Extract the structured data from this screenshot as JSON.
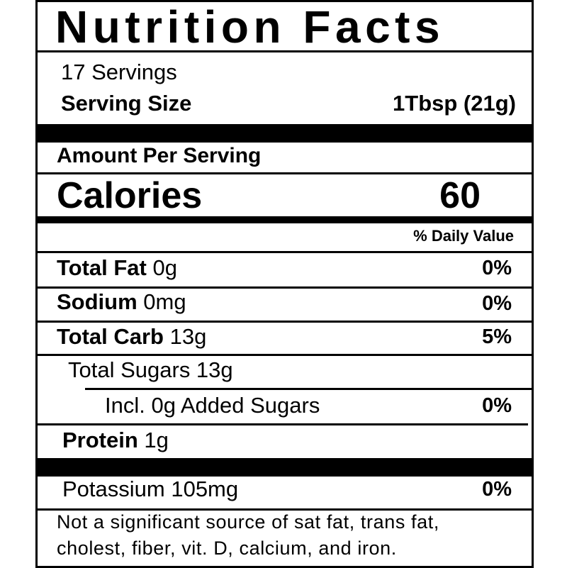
{
  "title": "Nutrition Facts",
  "servings": "17 Servings",
  "serving_size": {
    "label": "Serving Size",
    "value": "1Tbsp (21g)"
  },
  "amount_per_serving": "Amount Per Serving",
  "calories": {
    "label": "Calories",
    "value": "60"
  },
  "daily_value_header": "% Daily Value",
  "nutrients": [
    {
      "name": "Total  Fat",
      "amount": " 0g",
      "dv": "0%"
    },
    {
      "name": "Sodium",
      "amount": " 0mg",
      "dv": "0%"
    },
    {
      "name": "Total Carb",
      "amount": " 13g",
      "dv": "5%"
    },
    {
      "name": "Total Sugars 13g",
      "amount": "",
      "dv": ""
    },
    {
      "name": "Incl. 0g Added Sugars",
      "amount": "",
      "dv": "0%"
    },
    {
      "name": "Protein",
      "amount": " 1g",
      "dv": ""
    },
    {
      "name": "Potassium 105mg",
      "amount": "",
      "dv": "0%"
    }
  ],
  "footnote": [
    "Not a significant source of sat fat, trans fat,",
    "cholest, fiber, vit. D, calcium, and iron."
  ]
}
